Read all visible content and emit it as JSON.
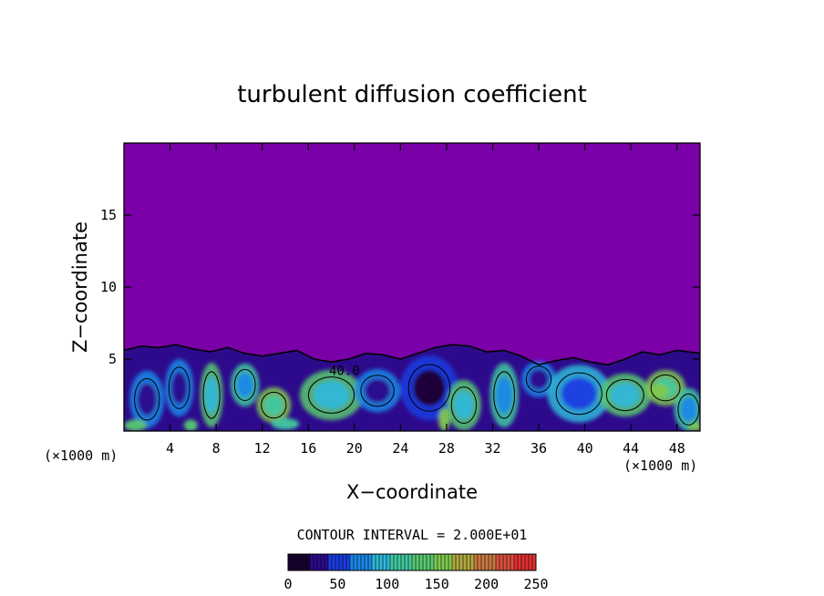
{
  "chart_data": {
    "type": "heatmap",
    "title": "turbulent diffusion coefficient",
    "xlabel": "X−coordinate",
    "ylabel": "Z−coordinate",
    "x_unit": "(×1000 m)",
    "y_unit": "(×1000 m)",
    "xlim": [
      0,
      50
    ],
    "ylim": [
      0,
      20
    ],
    "x_ticks": [
      4,
      8,
      12,
      16,
      20,
      24,
      28,
      32,
      36,
      40,
      44,
      48
    ],
    "y_ticks": [
      5,
      10,
      15
    ],
    "contour_interval_label": "CONTOUR INTERVAL = 2.000E+01",
    "contour_label": "40.0",
    "contour_label_pos": [
      17.8,
      3.9
    ],
    "colorbar": {
      "min": 0,
      "max": 250,
      "ticks": [
        0,
        50,
        100,
        150,
        200,
        250
      ],
      "colors": [
        "#1a0030",
        "#2d0a8c",
        "#1a3de0",
        "#1a88e8",
        "#2fb8d8",
        "#40c8a0",
        "#58c870",
        "#80c850",
        "#b0a840",
        "#c87840",
        "#d85040",
        "#e03030"
      ]
    },
    "background_color": "#7a00a8",
    "boundary_layer_top": [
      [
        0,
        5.6
      ],
      [
        1.5,
        5.9
      ],
      [
        3,
        5.8
      ],
      [
        4.5,
        6.0
      ],
      [
        6,
        5.7
      ],
      [
        7.5,
        5.5
      ],
      [
        9,
        5.8
      ],
      [
        10.5,
        5.4
      ],
      [
        12,
        5.2
      ],
      [
        13.5,
        5.4
      ],
      [
        15,
        5.6
      ],
      [
        16.5,
        5.0
      ],
      [
        18,
        4.8
      ],
      [
        19.5,
        5.0
      ],
      [
        21,
        5.4
      ],
      [
        22.5,
        5.3
      ],
      [
        24,
        5.0
      ],
      [
        25.5,
        5.4
      ],
      [
        27,
        5.8
      ],
      [
        28.5,
        6.0
      ],
      [
        30,
        5.9
      ],
      [
        31.5,
        5.5
      ],
      [
        33,
        5.6
      ],
      [
        34.5,
        5.2
      ],
      [
        36,
        4.6
      ],
      [
        37.5,
        4.9
      ],
      [
        39,
        5.1
      ],
      [
        40.5,
        4.8
      ],
      [
        42,
        4.6
      ],
      [
        43.5,
        5.0
      ],
      [
        45,
        5.5
      ],
      [
        46.5,
        5.3
      ],
      [
        48,
        5.6
      ],
      [
        50,
        5.4
      ]
    ],
    "eddies": [
      {
        "x": 2.0,
        "z": 2.2,
        "rx": 1.2,
        "rz": 1.6,
        "v": 30
      },
      {
        "x": 4.8,
        "z": 3.0,
        "rx": 1.0,
        "rz": 1.6,
        "v": 40
      },
      {
        "x": 7.6,
        "z": 2.5,
        "rx": 0.8,
        "rz": 1.8,
        "v": 90
      },
      {
        "x": 10.5,
        "z": 3.2,
        "rx": 1.0,
        "rz": 1.2,
        "v": 70
      },
      {
        "x": 13.0,
        "z": 1.8,
        "rx": 1.2,
        "rz": 1.0,
        "v": 110
      },
      {
        "x": 18.0,
        "z": 2.5,
        "rx": 2.2,
        "rz": 1.4,
        "v": 100
      },
      {
        "x": 22.0,
        "z": 2.8,
        "rx": 1.6,
        "rz": 1.2,
        "v": 40
      },
      {
        "x": 26.5,
        "z": 3.0,
        "rx": 2.0,
        "rz": 1.8,
        "v": 20
      },
      {
        "x": 29.5,
        "z": 1.8,
        "rx": 1.2,
        "rz": 1.4,
        "v": 90
      },
      {
        "x": 33.0,
        "z": 2.5,
        "rx": 1.0,
        "rz": 1.8,
        "v": 80
      },
      {
        "x": 36.0,
        "z": 3.6,
        "rx": 1.2,
        "rz": 1.0,
        "v": 30
      },
      {
        "x": 39.5,
        "z": 2.6,
        "rx": 2.2,
        "rz": 1.6,
        "v": 60
      },
      {
        "x": 43.5,
        "z": 2.5,
        "rx": 1.8,
        "rz": 1.2,
        "v": 90
      },
      {
        "x": 47.0,
        "z": 3.0,
        "rx": 1.4,
        "rz": 1.0,
        "v": 120
      },
      {
        "x": 49.0,
        "z": 1.5,
        "rx": 1.0,
        "rz": 1.2,
        "v": 70
      }
    ],
    "hot_spots": [
      {
        "x": 1.0,
        "z": 0.4,
        "rx": 1.0,
        "rz": 0.4,
        "v": 140
      },
      {
        "x": 5.8,
        "z": 0.4,
        "rx": 0.6,
        "rz": 0.4,
        "v": 130
      },
      {
        "x": 14.0,
        "z": 0.5,
        "rx": 1.2,
        "rz": 0.4,
        "v": 120
      },
      {
        "x": 27.8,
        "z": 0.8,
        "rx": 0.5,
        "rz": 0.8,
        "v": 150
      },
      {
        "x": 46.5,
        "z": 2.8,
        "rx": 0.8,
        "rz": 0.5,
        "v": 160
      },
      {
        "x": 49.6,
        "z": 0.3,
        "rx": 0.6,
        "rz": 0.3,
        "v": 150
      }
    ]
  }
}
